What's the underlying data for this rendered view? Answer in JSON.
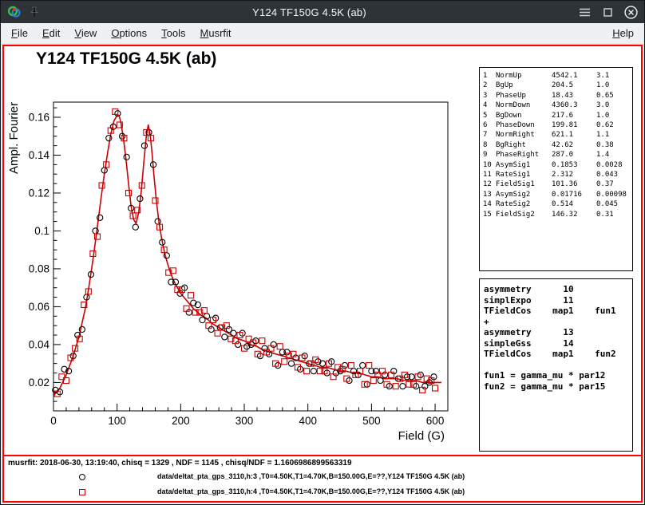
{
  "window": {
    "title": "Y124 TF150G 4.5K (ab)"
  },
  "menu": {
    "items": [
      {
        "label": "File"
      },
      {
        "label": "Edit"
      },
      {
        "label": "View"
      },
      {
        "label": "Options"
      },
      {
        "label": "Tools"
      },
      {
        "label": "Musrfit"
      }
    ],
    "help_label": "Help"
  },
  "plot": {
    "title": "Y124 TF150G 4.5K (ab)"
  },
  "stats": {
    "params": [
      {
        "idx": "1",
        "name": "NormUp",
        "value": "4542.1",
        "error": "3.1"
      },
      {
        "idx": "2",
        "name": "BgUp",
        "value": "204.5",
        "error": "1.0"
      },
      {
        "idx": "3",
        "name": "PhaseUp",
        "value": "18.43",
        "error": "0.65"
      },
      {
        "idx": "4",
        "name": "NormDown",
        "value": "4360.3",
        "error": "3.0"
      },
      {
        "idx": "5",
        "name": "BgDown",
        "value": "217.6",
        "error": "1.0"
      },
      {
        "idx": "6",
        "name": "PhaseDown",
        "value": "199.81",
        "error": "0.62"
      },
      {
        "idx": "7",
        "name": "NormRight",
        "value": "621.1",
        "error": "1.1"
      },
      {
        "idx": "8",
        "name": "BgRight",
        "value": "42.62",
        "error": "0.38"
      },
      {
        "idx": "9",
        "name": "PhaseRight",
        "value": "287.0",
        "error": "1.4"
      },
      {
        "idx": "10",
        "name": "AsymSig1",
        "value": "0.1853",
        "error": "0.0028"
      },
      {
        "idx": "11",
        "name": "RateSig1",
        "value": "2.312",
        "error": "0.043"
      },
      {
        "idx": "12",
        "name": "FieldSig1",
        "value": "101.36",
        "error": "0.37"
      },
      {
        "idx": "13",
        "name": "AsymSig2",
        "value": "0.01716",
        "error": "0.00098"
      },
      {
        "idx": "14",
        "name": "RateSig2",
        "value": "0.514",
        "error": "0.045"
      },
      {
        "idx": "15",
        "name": "FieldSig2",
        "value": "146.32",
        "error": "0.31"
      }
    ]
  },
  "theory": {
    "lines": [
      "asymmetry      10",
      "simplExpo      11",
      "TFieldCos    map1    fun1",
      "+",
      "asymmetry      13",
      "simpleGss      14",
      "TFieldCos    map1    fun2",
      "",
      "fun1 = gamma_mu * par12",
      "fun2 = gamma_mu * par15"
    ]
  },
  "footer": {
    "info": "musrfit: 2018-06-30, 13:19:40, chisq = 1329 , NDF = 1145 , chisq/NDF = 1.1606986899563319",
    "legend": [
      {
        "marker": "circle",
        "color": "#000000",
        "label": "data/deltat_pta_gps_3110,h:3 ,T0=4.50K,T1=4.70K,B=150.00G,E=??,Y124 TF150G 4.5K (ab)"
      },
      {
        "marker": "square",
        "color": "#cc0000",
        "label": "data/deltat_pta_gps_3110,h:4 ,T0=4.50K,T1=4.70K,B=150.00G,E=??,Y124 TF150G 4.5K (ab)"
      }
    ]
  },
  "chart_data": {
    "type": "scatter",
    "title": "Y124 TF150G 4.5K (ab)",
    "xlabel": "Field (G)",
    "ylabel": "Ampl. Fourier",
    "xlim": [
      0,
      620
    ],
    "ylim": [
      0.005,
      0.168
    ],
    "x_ticks": [
      0,
      100,
      200,
      300,
      400,
      500,
      600
    ],
    "x_minor_step": 20,
    "y_ticks": [
      0.02,
      0.04,
      0.06,
      0.08,
      0.1,
      0.12,
      0.14,
      0.16
    ],
    "y_tick_labels": [
      "0.02",
      "0.04",
      "0.06",
      "0.08",
      "0.1",
      "0.12",
      "0.14",
      "0.16"
    ],
    "y_minor_step": 0.005,
    "grid": false,
    "accent_color": "#cc0000",
    "fit": {
      "name": "fit-curve",
      "color": "#cc0000",
      "points": [
        [
          0,
          0.013
        ],
        [
          10,
          0.017
        ],
        [
          20,
          0.024
        ],
        [
          30,
          0.033
        ],
        [
          40,
          0.044
        ],
        [
          50,
          0.059
        ],
        [
          55,
          0.069
        ],
        [
          60,
          0.08
        ],
        [
          65,
          0.092
        ],
        [
          70,
          0.105
        ],
        [
          75,
          0.118
        ],
        [
          80,
          0.13
        ],
        [
          85,
          0.141
        ],
        [
          90,
          0.151
        ],
        [
          95,
          0.158
        ],
        [
          100,
          0.161
        ],
        [
          103,
          0.161
        ],
        [
          106,
          0.157
        ],
        [
          110,
          0.149
        ],
        [
          114,
          0.138
        ],
        [
          118,
          0.125
        ],
        [
          122,
          0.113
        ],
        [
          126,
          0.106
        ],
        [
          130,
          0.104
        ],
        [
          134,
          0.11
        ],
        [
          138,
          0.121
        ],
        [
          142,
          0.136
        ],
        [
          146,
          0.15
        ],
        [
          149,
          0.156
        ],
        [
          152,
          0.151
        ],
        [
          155,
          0.141
        ],
        [
          158,
          0.129
        ],
        [
          162,
          0.115
        ],
        [
          166,
          0.104
        ],
        [
          170,
          0.096
        ],
        [
          175,
          0.088
        ],
        [
          180,
          0.082
        ],
        [
          185,
          0.077
        ],
        [
          190,
          0.073
        ],
        [
          195,
          0.07
        ],
        [
          200,
          0.067
        ],
        [
          210,
          0.063
        ],
        [
          220,
          0.059
        ],
        [
          230,
          0.056
        ],
        [
          240,
          0.054
        ],
        [
          250,
          0.051
        ],
        [
          260,
          0.049
        ],
        [
          270,
          0.047
        ],
        [
          280,
          0.045
        ],
        [
          290,
          0.043
        ],
        [
          300,
          0.042
        ],
        [
          310,
          0.04
        ],
        [
          320,
          0.039
        ],
        [
          330,
          0.037
        ],
        [
          340,
          0.036
        ],
        [
          350,
          0.035
        ],
        [
          360,
          0.034
        ],
        [
          370,
          0.033
        ],
        [
          380,
          0.032
        ],
        [
          390,
          0.031
        ],
        [
          400,
          0.03
        ],
        [
          410,
          0.029
        ],
        [
          420,
          0.028
        ],
        [
          430,
          0.028
        ],
        [
          440,
          0.027
        ],
        [
          450,
          0.026
        ],
        [
          460,
          0.026
        ],
        [
          470,
          0.025
        ],
        [
          480,
          0.025
        ],
        [
          490,
          0.024
        ],
        [
          500,
          0.023
        ],
        [
          510,
          0.023
        ],
        [
          520,
          0.022
        ],
        [
          530,
          0.022
        ],
        [
          540,
          0.022
        ],
        [
          550,
          0.021
        ],
        [
          560,
          0.021
        ],
        [
          570,
          0.021
        ],
        [
          580,
          0.02
        ],
        [
          590,
          0.02
        ],
        [
          600,
          0.02
        ],
        [
          610,
          0.02
        ]
      ]
    },
    "series": [
      {
        "name": "data/deltat_pta_gps_3110,h:3",
        "marker": "circle",
        "color": "#000000",
        "points": [
          [
            3,
            0.016
          ],
          [
            10,
            0.015
          ],
          [
            17,
            0.027
          ],
          [
            24,
            0.026
          ],
          [
            31,
            0.034
          ],
          [
            38,
            0.045
          ],
          [
            45,
            0.048
          ],
          [
            52,
            0.065
          ],
          [
            59,
            0.077
          ],
          [
            66,
            0.1
          ],
          [
            73,
            0.107
          ],
          [
            80,
            0.132
          ],
          [
            87,
            0.149
          ],
          [
            94,
            0.155
          ],
          [
            101,
            0.162
          ],
          [
            108,
            0.15
          ],
          [
            115,
            0.139
          ],
          [
            122,
            0.112
          ],
          [
            129,
            0.102
          ],
          [
            136,
            0.117
          ],
          [
            143,
            0.145
          ],
          [
            150,
            0.152
          ],
          [
            157,
            0.135
          ],
          [
            164,
            0.105
          ],
          [
            171,
            0.094
          ],
          [
            178,
            0.087
          ],
          [
            185,
            0.073
          ],
          [
            192,
            0.073
          ],
          [
            199,
            0.067
          ],
          [
            206,
            0.07
          ],
          [
            213,
            0.057
          ],
          [
            220,
            0.062
          ],
          [
            227,
            0.061
          ],
          [
            234,
            0.053
          ],
          [
            241,
            0.055
          ],
          [
            248,
            0.048
          ],
          [
            255,
            0.054
          ],
          [
            262,
            0.049
          ],
          [
            269,
            0.044
          ],
          [
            276,
            0.048
          ],
          [
            283,
            0.046
          ],
          [
            290,
            0.04
          ],
          [
            297,
            0.046
          ],
          [
            304,
            0.039
          ],
          [
            311,
            0.04
          ],
          [
            318,
            0.042
          ],
          [
            325,
            0.034
          ],
          [
            332,
            0.038
          ],
          [
            339,
            0.035
          ],
          [
            346,
            0.04
          ],
          [
            353,
            0.029
          ],
          [
            360,
            0.036
          ],
          [
            367,
            0.036
          ],
          [
            374,
            0.03
          ],
          [
            381,
            0.033
          ],
          [
            388,
            0.027
          ],
          [
            395,
            0.034
          ],
          [
            402,
            0.03
          ],
          [
            409,
            0.026
          ],
          [
            416,
            0.031
          ],
          [
            423,
            0.03
          ],
          [
            430,
            0.025
          ],
          [
            437,
            0.031
          ],
          [
            444,
            0.025
          ],
          [
            451,
            0.026
          ],
          [
            458,
            0.029
          ],
          [
            465,
            0.021
          ],
          [
            472,
            0.026
          ],
          [
            479,
            0.024
          ],
          [
            486,
            0.029
          ],
          [
            493,
            0.019
          ],
          [
            500,
            0.026
          ],
          [
            507,
            0.026
          ],
          [
            514,
            0.021
          ],
          [
            521,
            0.024
          ],
          [
            528,
            0.018
          ],
          [
            535,
            0.026
          ],
          [
            542,
            0.022
          ],
          [
            549,
            0.018
          ],
          [
            556,
            0.023
          ],
          [
            563,
            0.023
          ],
          [
            570,
            0.018
          ],
          [
            577,
            0.024
          ],
          [
            584,
            0.018
          ],
          [
            591,
            0.02
          ],
          [
            598,
            0.023
          ]
        ]
      },
      {
        "name": "data/deltat_pta_gps_3110,h:4",
        "marker": "square",
        "color": "#cc0000",
        "points": [
          [
            6,
            0.014
          ],
          [
            13,
            0.023
          ],
          [
            20,
            0.021
          ],
          [
            27,
            0.033
          ],
          [
            34,
            0.038
          ],
          [
            41,
            0.043
          ],
          [
            48,
            0.061
          ],
          [
            55,
            0.068
          ],
          [
            62,
            0.088
          ],
          [
            69,
            0.097
          ],
          [
            76,
            0.124
          ],
          [
            83,
            0.135
          ],
          [
            90,
            0.153
          ],
          [
            97,
            0.163
          ],
          [
            104,
            0.156
          ],
          [
            111,
            0.149
          ],
          [
            118,
            0.12
          ],
          [
            125,
            0.108
          ],
          [
            132,
            0.111
          ],
          [
            139,
            0.124
          ],
          [
            146,
            0.152
          ],
          [
            153,
            0.149
          ],
          [
            160,
            0.116
          ],
          [
            167,
            0.102
          ],
          [
            174,
            0.09
          ],
          [
            181,
            0.078
          ],
          [
            188,
            0.079
          ],
          [
            195,
            0.069
          ],
          [
            202,
            0.069
          ],
          [
            209,
            0.059
          ],
          [
            216,
            0.066
          ],
          [
            223,
            0.057
          ],
          [
            230,
            0.057
          ],
          [
            237,
            0.058
          ],
          [
            244,
            0.05
          ],
          [
            251,
            0.053
          ],
          [
            258,
            0.046
          ],
          [
            265,
            0.049
          ],
          [
            272,
            0.05
          ],
          [
            279,
            0.043
          ],
          [
            286,
            0.042
          ],
          [
            293,
            0.045
          ],
          [
            300,
            0.038
          ],
          [
            307,
            0.043
          ],
          [
            314,
            0.041
          ],
          [
            321,
            0.035
          ],
          [
            328,
            0.042
          ],
          [
            335,
            0.036
          ],
          [
            342,
            0.038
          ],
          [
            349,
            0.03
          ],
          [
            356,
            0.039
          ],
          [
            363,
            0.031
          ],
          [
            370,
            0.034
          ],
          [
            377,
            0.035
          ],
          [
            384,
            0.028
          ],
          [
            391,
            0.033
          ],
          [
            398,
            0.026
          ],
          [
            405,
            0.03
          ],
          [
            412,
            0.032
          ],
          [
            419,
            0.026
          ],
          [
            426,
            0.026
          ],
          [
            433,
            0.03
          ],
          [
            440,
            0.023
          ],
          [
            447,
            0.028
          ],
          [
            454,
            0.027
          ],
          [
            461,
            0.022
          ],
          [
            468,
            0.029
          ],
          [
            475,
            0.024
          ],
          [
            482,
            0.026
          ],
          [
            489,
            0.019
          ],
          [
            496,
            0.029
          ],
          [
            503,
            0.021
          ],
          [
            510,
            0.024
          ],
          [
            517,
            0.026
          ],
          [
            524,
            0.019
          ],
          [
            531,
            0.024
          ],
          [
            538,
            0.018
          ],
          [
            545,
            0.022
          ],
          [
            552,
            0.024
          ],
          [
            559,
            0.019
          ],
          [
            566,
            0.019
          ],
          [
            573,
            0.023
          ],
          [
            580,
            0.016
          ],
          [
            587,
            0.022
          ],
          [
            594,
            0.021
          ],
          [
            600,
            0.017
          ]
        ]
      }
    ]
  }
}
